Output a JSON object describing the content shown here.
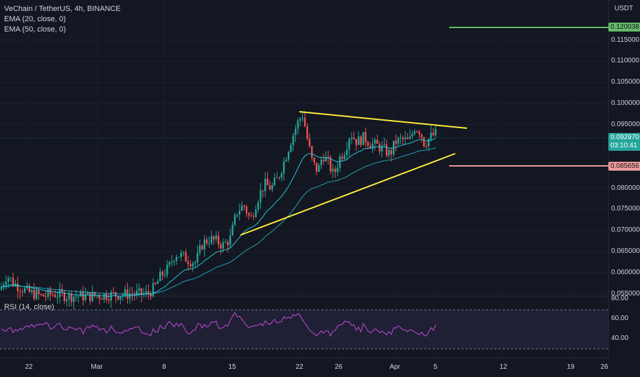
{
  "legend": {
    "symbol": "VeChain / TetherUS, 4h, BINANCE",
    "ema20": "EMA (20, close, 0)",
    "ema50": "EMA (50, close, 0)"
  },
  "rsi_label": "RSI (14, close)",
  "currency": "USDT",
  "price_axis": [
    "0.115000",
    "0.110000",
    "0.105000",
    "0.100000",
    "0.095000",
    "0.080000",
    "0.075000",
    "0.070000",
    "0.065000",
    "0.060000",
    "0.055000"
  ],
  "rsi_axis": [
    "80.00",
    "60.00",
    "40.00"
  ],
  "time_axis": [
    "22",
    "Mar",
    "8",
    "15",
    "22",
    "26",
    "Apr",
    "5",
    "12",
    "19",
    "26"
  ],
  "tags": {
    "target": "0.120038",
    "current_price": "0.092970",
    "countdown": "03:10:41",
    "stop": "0.085656"
  },
  "colors": {
    "up": "#26a69a",
    "down": "#ef5350",
    "ema": "#26c6da",
    "trend": "#ffeb3b",
    "target": "#66bb6a",
    "stop": "#ef9a9a",
    "rsi": "#ab47bc"
  },
  "chart_data": {
    "type": "candlestick",
    "y_range": [
      0.0545,
      0.1245
    ],
    "close_path": [
      [
        0,
        0.056
      ],
      [
        10,
        0.0595
      ],
      [
        20,
        0.0575
      ],
      [
        40,
        0.0555
      ],
      [
        60,
        0.0545
      ],
      [
        80,
        0.055
      ],
      [
        100,
        0.0545
      ],
      [
        130,
        0.0545
      ],
      [
        160,
        0.0548
      ],
      [
        190,
        0.055
      ],
      [
        215,
        0.055
      ],
      [
        225,
        0.0565
      ],
      [
        235,
        0.0595
      ],
      [
        245,
        0.061
      ],
      [
        255,
        0.0645
      ],
      [
        265,
        0.064
      ],
      [
        275,
        0.063
      ],
      [
        285,
        0.0625
      ],
      [
        295,
        0.067
      ],
      [
        305,
        0.068
      ],
      [
        315,
        0.0675
      ],
      [
        325,
        0.0665
      ],
      [
        335,
        0.068
      ],
      [
        345,
        0.0745
      ],
      [
        355,
        0.076
      ],
      [
        365,
        0.0725
      ],
      [
        375,
        0.0775
      ],
      [
        385,
        0.081
      ],
      [
        395,
        0.08
      ],
      [
        405,
        0.0825
      ],
      [
        415,
        0.087
      ],
      [
        425,
        0.092
      ],
      [
        435,
        0.096
      ],
      [
        441,
        0.0975
      ],
      [
        447,
        0.092
      ],
      [
        455,
        0.086
      ],
      [
        463,
        0.084
      ],
      [
        470,
        0.088
      ],
      [
        478,
        0.086
      ],
      [
        486,
        0.083
      ],
      [
        494,
        0.087
      ],
      [
        502,
        0.089
      ],
      [
        510,
        0.093
      ],
      [
        520,
        0.091
      ],
      [
        530,
        0.092
      ],
      [
        540,
        0.0905
      ],
      [
        550,
        0.09
      ],
      [
        560,
        0.089
      ],
      [
        568,
        0.088
      ],
      [
        576,
        0.091
      ],
      [
        586,
        0.0915
      ],
      [
        596,
        0.091
      ],
      [
        604,
        0.0945
      ],
      [
        612,
        0.0935
      ],
      [
        618,
        0.0905
      ],
      [
        626,
        0.092
      ],
      [
        636,
        0.093
      ]
    ],
    "trendlines": [
      {
        "from": [
          "Mar 21",
          "0.0995"
        ],
        "to": [
          "Apr 9",
          "0.0955"
        ]
      },
      {
        "from": [
          "Mar 15",
          "0.0695"
        ],
        "to": [
          "Apr 9",
          "0.0905"
        ]
      }
    ],
    "levels": {
      "target": 0.120038,
      "stop": 0.085656,
      "current": 0.09297
    },
    "rsi": {
      "period": 14,
      "levels": [
        70,
        30
      ],
      "axis": [
        40,
        60,
        80
      ]
    }
  }
}
